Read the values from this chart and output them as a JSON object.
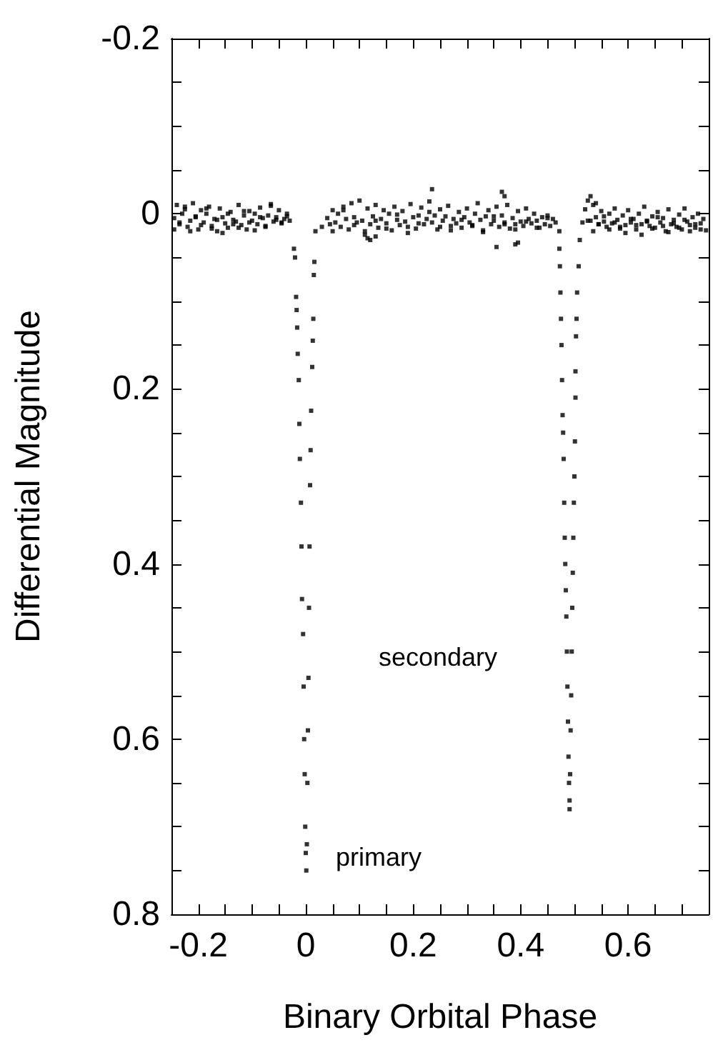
{
  "chart_data": {
    "type": "scatter",
    "xlabel": "Binary Orbital Phase",
    "ylabel": "Differential Magnitude",
    "xlim": [
      -0.25,
      0.75
    ],
    "ylim": [
      0.8,
      -0.2
    ],
    "xticks": [
      {
        "value": -0.25,
        "label": null
      },
      -0.2,
      {
        "value": -0.15,
        "label": null
      },
      {
        "value": -0.1,
        "label": null
      },
      {
        "value": -0.05,
        "label": null
      },
      0,
      {
        "value": 0.05,
        "label": null
      },
      {
        "value": 0.1,
        "label": null
      },
      {
        "value": 0.15,
        "label": null
      },
      0.2,
      {
        "value": 0.25,
        "label": null
      },
      {
        "value": 0.3,
        "label": null
      },
      {
        "value": 0.35,
        "label": null
      },
      0.4,
      {
        "value": 0.45,
        "label": null
      },
      {
        "value": 0.5,
        "label": null
      },
      {
        "value": 0.55,
        "label": null
      },
      0.6,
      {
        "value": 0.65,
        "label": null
      },
      {
        "value": 0.7,
        "label": null
      }
    ],
    "yticks": [
      -0.2,
      {
        "value": -0.15,
        "label": null
      },
      {
        "value": -0.1,
        "label": null
      },
      {
        "value": -0.05,
        "label": null
      },
      0,
      {
        "value": 0.05,
        "label": null
      },
      {
        "value": 0.1,
        "label": null
      },
      {
        "value": 0.15,
        "label": null
      },
      0.2,
      {
        "value": 0.25,
        "label": null
      },
      {
        "value": 0.3,
        "label": null
      },
      {
        "value": 0.35,
        "label": null
      },
      0.4,
      {
        "value": 0.45,
        "label": null
      },
      {
        "value": 0.5,
        "label": null
      },
      {
        "value": 0.55,
        "label": null
      },
      0.6,
      {
        "value": 0.65,
        "label": null
      },
      {
        "value": 0.7,
        "label": null
      },
      {
        "value": 0.75,
        "label": null
      },
      0.8
    ],
    "marker": "square",
    "grid": false,
    "annotations": [
      "primary",
      "secondary"
    ],
    "series": [
      {
        "color": "#000000",
        "x": [
          -0.245,
          -0.24,
          -0.235,
          -0.23,
          -0.225,
          -0.22,
          -0.215,
          -0.21,
          -0.205,
          -0.2,
          -0.195,
          -0.19,
          -0.185,
          -0.18,
          -0.175,
          -0.17,
          -0.165,
          -0.16,
          -0.155,
          -0.15,
          -0.145,
          -0.14,
          -0.135,
          -0.13,
          -0.125,
          -0.12,
          -0.115,
          -0.11,
          -0.105,
          -0.1,
          -0.095,
          -0.09,
          -0.085,
          -0.08,
          -0.075,
          -0.07,
          -0.065,
          -0.06,
          -0.055,
          -0.05,
          -0.045,
          -0.04,
          -0.035,
          -0.03,
          -0.245,
          -0.235,
          -0.225,
          -0.215,
          -0.205,
          -0.195,
          -0.185,
          -0.175,
          -0.165,
          -0.155,
          -0.145,
          -0.135,
          -0.125,
          -0.115,
          -0.105,
          -0.095,
          -0.085,
          -0.075,
          -0.065,
          -0.055,
          -0.045,
          -0.035,
          0.03,
          0.04,
          0.045,
          0.05,
          0.055,
          0.06,
          0.065,
          0.07,
          0.075,
          0.08,
          0.085,
          0.09,
          0.095,
          0.1,
          0.105,
          0.11,
          0.115,
          0.12,
          0.125,
          0.13,
          0.135,
          0.14,
          0.145,
          0.15,
          0.155,
          0.16,
          0.165,
          0.17,
          0.175,
          0.18,
          0.185,
          0.19,
          0.195,
          0.2,
          0.205,
          0.21,
          0.215,
          0.22,
          0.225,
          0.23,
          0.235,
          0.24,
          0.245,
          0.25,
          0.255,
          0.26,
          0.265,
          0.27,
          0.275,
          0.28,
          0.285,
          0.29,
          0.295,
          0.3,
          0.305,
          0.31,
          0.315,
          0.32,
          0.325,
          0.33,
          0.335,
          0.34,
          0.345,
          0.35,
          0.355,
          0.36,
          0.365,
          0.37,
          0.375,
          0.38,
          0.385,
          0.39,
          0.395,
          0.4,
          0.405,
          0.41,
          0.415,
          0.42,
          0.425,
          0.43,
          0.435,
          0.44,
          0.445,
          0.45,
          0.455,
          0.46,
          0.465,
          0.05,
          0.07,
          0.09,
          0.11,
          0.13,
          0.15,
          0.17,
          0.19,
          0.21,
          0.23,
          0.25,
          0.27,
          0.29,
          0.31,
          0.33,
          0.35,
          0.37,
          0.39,
          0.41,
          0.43,
          0.45,
          0.12,
          0.115,
          0.13,
          0.235,
          0.365,
          0.37,
          0.39,
          0.355,
          0.395,
          0.515,
          0.52,
          0.525,
          0.53,
          0.535,
          0.54,
          0.545,
          0.55,
          0.555,
          0.56,
          0.565,
          0.57,
          0.575,
          0.58,
          0.585,
          0.59,
          0.595,
          0.6,
          0.605,
          0.61,
          0.615,
          0.62,
          0.625,
          0.63,
          0.635,
          0.64,
          0.645,
          0.65,
          0.655,
          0.66,
          0.665,
          0.67,
          0.675,
          0.68,
          0.685,
          0.69,
          0.695,
          0.7,
          0.705,
          0.71,
          0.715,
          0.72,
          0.725,
          0.73,
          0.735,
          0.74,
          0.745,
          0.525,
          0.535,
          0.545,
          0.555,
          0.565,
          0.575,
          0.585,
          0.595,
          0.605,
          0.615,
          0.625,
          0.635,
          0.645,
          0.655,
          0.665,
          0.675,
          0.685,
          0.695,
          0.705,
          0.715,
          0.725,
          0.735,
          0.53,
          0.54
        ],
        "values": [
          0.005,
          -0.01,
          0.012,
          0.0,
          -0.005,
          0.015,
          0.008,
          -0.012,
          0.003,
          0.018,
          -0.004,
          0.01,
          0.0,
          -0.008,
          0.014,
          0.006,
          0.02,
          -0.006,
          0.004,
          0.011,
          0.016,
          -0.002,
          0.007,
          0.009,
          -0.01,
          0.013,
          0.002,
          0.018,
          -0.003,
          0.008,
          0.0,
          0.012,
          -0.007,
          0.005,
          0.015,
          0.002,
          -0.011,
          0.009,
          0.004,
          -0.004,
          0.01,
          0.006,
          0.0,
          0.008,
          0.018,
          0.01,
          -0.008,
          0.02,
          0.004,
          0.013,
          -0.006,
          0.017,
          0.007,
          0.022,
          0.0,
          0.012,
          0.016,
          -0.003,
          0.01,
          0.019,
          0.004,
          0.014,
          -0.009,
          0.007,
          0.011,
          0.003,
          0.015,
          0.005,
          0.012,
          -0.004,
          0.01,
          0.0,
          0.015,
          -0.008,
          0.006,
          0.018,
          -0.012,
          0.004,
          0.01,
          -0.015,
          0.008,
          0.02,
          -0.006,
          0.012,
          0.003,
          -0.01,
          0.016,
          0.006,
          -0.004,
          0.011,
          0.0,
          0.019,
          -0.008,
          0.007,
          0.013,
          -0.003,
          0.009,
          0.015,
          -0.011,
          0.004,
          0.017,
          0.002,
          -0.007,
          0.012,
          0.006,
          -0.014,
          0.01,
          0.002,
          0.018,
          -0.005,
          0.008,
          0.003,
          -0.009,
          0.014,
          0.006,
          0.011,
          -0.002,
          0.016,
          0.004,
          -0.006,
          0.01,
          0.013,
          0.0,
          -0.012,
          0.007,
          0.019,
          0.003,
          -0.004,
          0.012,
          0.008,
          -0.008,
          0.015,
          0.002,
          0.01,
          -0.01,
          0.017,
          0.005,
          0.012,
          -0.003,
          0.009,
          0.014,
          -0.006,
          0.006,
          0.011,
          0.0,
          0.008,
          0.016,
          0.004,
          0.012,
          0.002,
          0.014,
          0.006,
          0.01,
          0.02,
          -0.004,
          0.013,
          0.024,
          0.008,
          0.017,
          0.001,
          0.022,
          0.011,
          -0.002,
          0.015,
          0.019,
          0.007,
          0.014,
          0.021,
          0.003,
          0.012,
          0.018,
          0.009,
          0.016,
          0.005,
          0.03,
          0.028,
          0.026,
          -0.028,
          -0.025,
          -0.02,
          0.035,
          0.038,
          0.033,
          0.01,
          -0.005,
          -0.015,
          0.008,
          -0.01,
          0.004,
          0.012,
          -0.003,
          0.009,
          0.015,
          0.0,
          0.011,
          -0.006,
          0.007,
          0.017,
          0.002,
          0.013,
          -0.004,
          0.01,
          0.006,
          0.018,
          0.0,
          0.012,
          -0.008,
          0.008,
          0.014,
          0.003,
          0.016,
          -0.002,
          0.01,
          0.005,
          0.02,
          -0.005,
          0.012,
          0.007,
          0.015,
          0.001,
          0.018,
          -0.006,
          0.009,
          0.013,
          0.004,
          0.016,
          0.0,
          0.011,
          0.006,
          0.019,
          0.008,
          0.02,
          0.012,
          0.003,
          0.018,
          0.01,
          0.015,
          0.022,
          0.006,
          0.013,
          0.024,
          0.009,
          0.017,
          0.004,
          0.014,
          0.021,
          0.011,
          0.016,
          0.007,
          0.02,
          0.012,
          0.018,
          -0.02,
          -0.012
        ]
      },
      {
        "color": "#000000",
        "x": [
          -0.022,
          -0.02,
          -0.018,
          -0.017,
          -0.016,
          -0.015,
          -0.013,
          -0.012,
          -0.011,
          -0.009,
          -0.008,
          -0.007,
          -0.005,
          -0.004,
          -0.003,
          -0.002,
          -0.001,
          0,
          0.001,
          0.002,
          0.003,
          0.004,
          0.005,
          0.006,
          0.007,
          0.008,
          0.009,
          0.01,
          0.012,
          0.013,
          0.014,
          0.015,
          0.016,
          0.018
        ],
        "values": [
          0.04,
          0.05,
          0.095,
          0.11,
          0.13,
          0.16,
          0.19,
          0.24,
          0.28,
          0.33,
          0.38,
          0.44,
          0.48,
          0.54,
          0.6,
          0.64,
          0.7,
          0.73,
          0.75,
          0.72,
          0.65,
          0.59,
          0.53,
          0.45,
          0.38,
          0.31,
          0.27,
          0.225,
          0.175,
          0.145,
          0.12,
          0.07,
          0.055,
          0.02
        ]
      },
      {
        "color": "#000000",
        "x": [
          0.472,
          0.472,
          0.473,
          0.474,
          0.475,
          0.476,
          0.477,
          0.478,
          0.479,
          0.48,
          0.481,
          0.482,
          0.483,
          0.484,
          0.485,
          0.486,
          0.487,
          0.488,
          0.489,
          0.49,
          0.491,
          0.51,
          0.508,
          0.505,
          0.504,
          0.503,
          0.502,
          0.502,
          0.501,
          0.5,
          0.499,
          0.498,
          0.497,
          0.496,
          0.495,
          0.494,
          0.493,
          0.492,
          0.491
        ],
        "values": [
          0.02,
          0.04,
          0.06,
          0.09,
          0.12,
          0.15,
          0.19,
          0.23,
          0.25,
          0.28,
          0.33,
          0.37,
          0.4,
          0.43,
          0.46,
          0.5,
          0.54,
          0.58,
          0.62,
          0.65,
          0.67,
          0.03,
          0.06,
          0.09,
          0.12,
          0.14,
          0.18,
          0.21,
          0.26,
          0.3,
          0.33,
          0.37,
          0.41,
          0.45,
          0.5,
          0.55,
          0.59,
          0.64,
          0.68
        ]
      }
    ]
  }
}
